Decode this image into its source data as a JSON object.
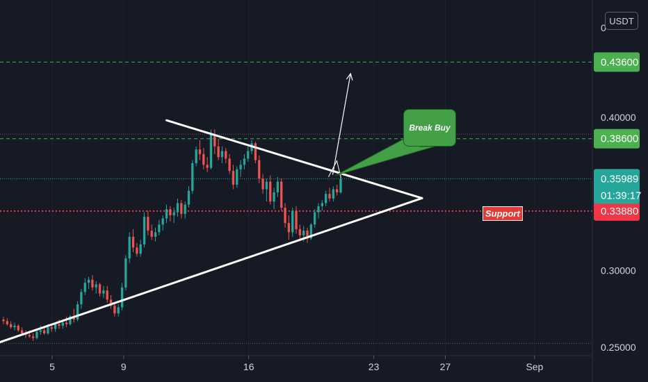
{
  "chart_data": {
    "type": "candlestick",
    "quote_currency": "USDT",
    "y_axis": {
      "ticks": [
        "0.25000",
        "0.30000",
        "0.35000",
        "0.40000"
      ],
      "top_tick_partial": "0",
      "scale_min": 0.2445,
      "scale_max": 0.4765
    },
    "x_axis": {
      "ticks": [
        {
          "label": "5",
          "day": 5
        },
        {
          "label": "9",
          "day": 9
        },
        {
          "label": "16",
          "day": 16
        },
        {
          "label": "23",
          "day": 23
        },
        {
          "label": "27",
          "day": 27
        },
        {
          "label": "Sep",
          "day": 32
        }
      ]
    },
    "price_lines": [
      {
        "name": "target-1",
        "value": 0.436,
        "label": "0.43600",
        "color": "#4caf50",
        "style": "dashed"
      },
      {
        "name": "target-2",
        "value": 0.386,
        "label": "0.38600",
        "color": "#4caf50",
        "style": "dashed"
      },
      {
        "name": "support",
        "value": 0.3388,
        "label": "0.33880",
        "color": "#f23645",
        "style": "dotted"
      }
    ],
    "last_price": {
      "value": 0.35989,
      "label": "0.35989",
      "countdown": "01:39:17",
      "color": "#26a69a"
    },
    "reference_lines": [
      0.389,
      0.2525
    ],
    "trendlines": [
      {
        "name": "resistance-line",
        "from": {
          "day": 11.4,
          "price": 0.398
        },
        "to": {
          "day": 25.7,
          "price": 0.3472
        }
      },
      {
        "name": "support-line",
        "from": {
          "day": 0.3,
          "price": 0.2462
        },
        "to": {
          "day": 25.7,
          "price": 0.3472
        }
      }
    ],
    "breakout_arrow": {
      "from": {
        "day": 20.7,
        "price": 0.3625
      },
      "to": {
        "day": 21.7,
        "price": 0.4285
      }
    },
    "annotations": {
      "callout": "Break Buy",
      "support_label": "Support"
    },
    "candles": [
      [
        0.268,
        0.27,
        0.265,
        0.267
      ],
      [
        0.267,
        0.269,
        0.264,
        0.265
      ],
      [
        0.265,
        0.267,
        0.262,
        0.263
      ],
      [
        0.263,
        0.266,
        0.261,
        0.264
      ],
      [
        0.264,
        0.265,
        0.26,
        0.261
      ],
      [
        0.261,
        0.263,
        0.258,
        0.259
      ],
      [
        0.259,
        0.261,
        0.256,
        0.258
      ],
      [
        0.258,
        0.261,
        0.256,
        0.257
      ],
      [
        0.257,
        0.259,
        0.254,
        0.256
      ],
      [
        0.256,
        0.262,
        0.255,
        0.26
      ],
      [
        0.26,
        0.264,
        0.258,
        0.261
      ],
      [
        0.261,
        0.263,
        0.258,
        0.259
      ],
      [
        0.259,
        0.265,
        0.258,
        0.263
      ],
      [
        0.263,
        0.264,
        0.26,
        0.262
      ],
      [
        0.262,
        0.266,
        0.26,
        0.265
      ],
      [
        0.265,
        0.268,
        0.262,
        0.264
      ],
      [
        0.264,
        0.268,
        0.262,
        0.266
      ],
      [
        0.266,
        0.27,
        0.263,
        0.265
      ],
      [
        0.265,
        0.271,
        0.264,
        0.27
      ],
      [
        0.27,
        0.275,
        0.266,
        0.268
      ],
      [
        0.268,
        0.28,
        0.267,
        0.278
      ],
      [
        0.278,
        0.288,
        0.275,
        0.286
      ],
      [
        0.286,
        0.295,
        0.284,
        0.292
      ],
      [
        0.292,
        0.296,
        0.288,
        0.294
      ],
      [
        0.294,
        0.297,
        0.287,
        0.289
      ],
      [
        0.289,
        0.293,
        0.285,
        0.291
      ],
      [
        0.291,
        0.292,
        0.283,
        0.285
      ],
      [
        0.285,
        0.29,
        0.282,
        0.287
      ],
      [
        0.287,
        0.29,
        0.279,
        0.281
      ],
      [
        0.281,
        0.284,
        0.275,
        0.277
      ],
      [
        0.277,
        0.279,
        0.27,
        0.272
      ],
      [
        0.272,
        0.278,
        0.27,
        0.276
      ],
      [
        0.276,
        0.292,
        0.274,
        0.289
      ],
      [
        0.289,
        0.31,
        0.287,
        0.308
      ],
      [
        0.308,
        0.325,
        0.305,
        0.322
      ],
      [
        0.322,
        0.327,
        0.312,
        0.315
      ],
      [
        0.315,
        0.318,
        0.309,
        0.311
      ],
      [
        0.311,
        0.32,
        0.309,
        0.317
      ],
      [
        0.317,
        0.338,
        0.315,
        0.335
      ],
      [
        0.335,
        0.339,
        0.323,
        0.326
      ],
      [
        0.326,
        0.33,
        0.32,
        0.322
      ],
      [
        0.322,
        0.328,
        0.319,
        0.325
      ],
      [
        0.325,
        0.333,
        0.323,
        0.33
      ],
      [
        0.33,
        0.336,
        0.326,
        0.334
      ],
      [
        0.334,
        0.343,
        0.331,
        0.34
      ],
      [
        0.34,
        0.342,
        0.332,
        0.336
      ],
      [
        0.336,
        0.341,
        0.331,
        0.338
      ],
      [
        0.338,
        0.347,
        0.335,
        0.344
      ],
      [
        0.344,
        0.346,
        0.334,
        0.337
      ],
      [
        0.337,
        0.345,
        0.334,
        0.343
      ],
      [
        0.343,
        0.355,
        0.341,
        0.352
      ],
      [
        0.352,
        0.372,
        0.35,
        0.37
      ],
      [
        0.37,
        0.381,
        0.368,
        0.379
      ],
      [
        0.379,
        0.385,
        0.372,
        0.376
      ],
      [
        0.376,
        0.38,
        0.366,
        0.369
      ],
      [
        0.369,
        0.374,
        0.364,
        0.367
      ],
      [
        0.367,
        0.392,
        0.366,
        0.389
      ],
      [
        0.389,
        0.392,
        0.376,
        0.381
      ],
      [
        0.381,
        0.386,
        0.372,
        0.374
      ],
      [
        0.374,
        0.381,
        0.37,
        0.378
      ],
      [
        0.378,
        0.38,
        0.37,
        0.373
      ],
      [
        0.373,
        0.376,
        0.363,
        0.365
      ],
      [
        0.365,
        0.369,
        0.353,
        0.356
      ],
      [
        0.356,
        0.368,
        0.354,
        0.366
      ],
      [
        0.366,
        0.372,
        0.361,
        0.369
      ],
      [
        0.369,
        0.376,
        0.366,
        0.373
      ],
      [
        0.373,
        0.381,
        0.371,
        0.378
      ],
      [
        0.378,
        0.385,
        0.376,
        0.383
      ],
      [
        0.383,
        0.384,
        0.37,
        0.372
      ],
      [
        0.372,
        0.375,
        0.357,
        0.36
      ],
      [
        0.36,
        0.363,
        0.35,
        0.353
      ],
      [
        0.353,
        0.36,
        0.345,
        0.358
      ],
      [
        0.358,
        0.362,
        0.343,
        0.345
      ],
      [
        0.345,
        0.354,
        0.34,
        0.351
      ],
      [
        0.351,
        0.361,
        0.348,
        0.358
      ],
      [
        0.358,
        0.36,
        0.339,
        0.341
      ],
      [
        0.341,
        0.344,
        0.328,
        0.331
      ],
      [
        0.331,
        0.336,
        0.32,
        0.325
      ],
      [
        0.325,
        0.341,
        0.322,
        0.339
      ],
      [
        0.339,
        0.342,
        0.324,
        0.327
      ],
      [
        0.327,
        0.33,
        0.32,
        0.323
      ],
      [
        0.323,
        0.329,
        0.319,
        0.326
      ],
      [
        0.326,
        0.328,
        0.318,
        0.321
      ],
      [
        0.321,
        0.331,
        0.32,
        0.33
      ],
      [
        0.33,
        0.34,
        0.328,
        0.338
      ],
      [
        0.338,
        0.344,
        0.334,
        0.342
      ],
      [
        0.342,
        0.346,
        0.339,
        0.344
      ],
      [
        0.344,
        0.352,
        0.342,
        0.35
      ],
      [
        0.35,
        0.354,
        0.345,
        0.347
      ],
      [
        0.347,
        0.355,
        0.345,
        0.353
      ],
      [
        0.353,
        0.356,
        0.349,
        0.351
      ],
      [
        0.351,
        0.362,
        0.35,
        0.35989
      ]
    ]
  }
}
